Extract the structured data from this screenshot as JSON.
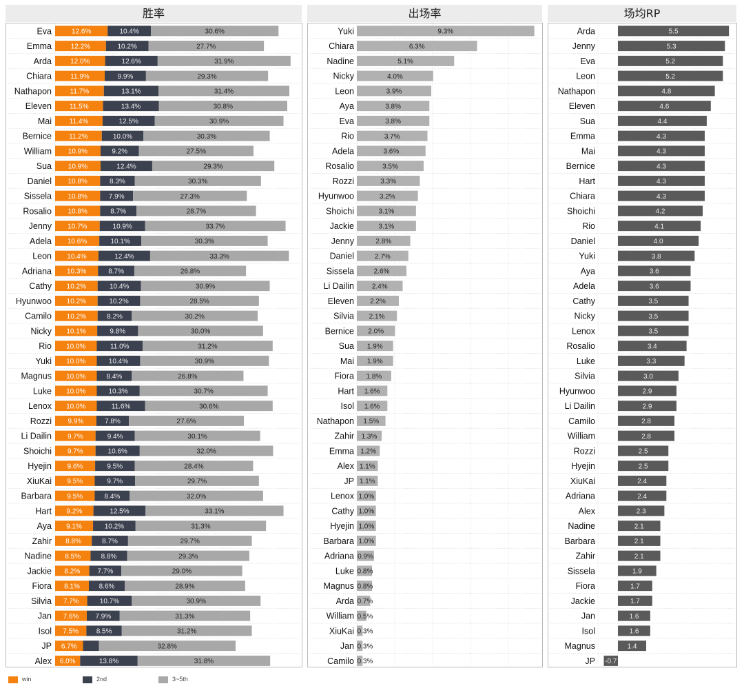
{
  "panels": {
    "win": "胜率",
    "pick": "出场率",
    "rp": "场均RP"
  },
  "legend": {
    "win": "win",
    "second": "2nd",
    "third": "3~5th"
  },
  "colors": {
    "win": "#f5820f",
    "second": "#3c4150",
    "third": "#a8a8a8",
    "pick": "#b1b1b1",
    "rp": "#5a5a5a"
  },
  "chart_data": [
    {
      "type": "bar",
      "stacked": true,
      "orientation": "horizontal",
      "title": "胜率",
      "categories": [
        "Eva",
        "Emma",
        "Arda",
        "Chiara",
        "Nathapon",
        "Eleven",
        "Mai",
        "Bernice",
        "William",
        "Sua",
        "Daniel",
        "Sissela",
        "Rosalio",
        "Jenny",
        "Adela",
        "Leon",
        "Adriana",
        "Cathy",
        "Hyunwoo",
        "Camilo",
        "Nicky",
        "Rio",
        "Yuki",
        "Magnus",
        "Luke",
        "Lenox",
        "Rozzi",
        "Li Dailin",
        "Shoichi",
        "Hyejin",
        "XiuKai",
        "Barbara",
        "Hart",
        "Aya",
        "Zahir",
        "Nadine",
        "Jackie",
        "Fiora",
        "Silvia",
        "Jan",
        "Isol",
        "JP",
        "Alex"
      ],
      "series": [
        {
          "name": "win",
          "values": [
            12.6,
            12.2,
            12.0,
            11.9,
            11.7,
            11.5,
            11.4,
            11.2,
            10.9,
            10.9,
            10.8,
            10.8,
            10.8,
            10.7,
            10.6,
            10.4,
            10.3,
            10.2,
            10.2,
            10.2,
            10.1,
            10.0,
            10.0,
            10.0,
            10.0,
            10.0,
            9.9,
            9.7,
            9.7,
            9.6,
            9.5,
            9.5,
            9.2,
            9.1,
            8.8,
            8.5,
            8.2,
            8.1,
            7.7,
            7.6,
            7.5,
            6.7,
            6.0
          ]
        },
        {
          "name": "2nd",
          "values": [
            10.4,
            10.2,
            12.6,
            9.9,
            13.1,
            13.4,
            12.5,
            10.0,
            9.2,
            12.4,
            8.3,
            7.9,
            8.7,
            10.9,
            10.1,
            12.4,
            8.7,
            10.4,
            10.2,
            8.2,
            9.8,
            11.0,
            10.4,
            8.4,
            10.3,
            11.6,
            7.8,
            9.4,
            10.6,
            9.5,
            9.7,
            8.4,
            12.5,
            10.2,
            8.7,
            8.8,
            7.7,
            8.6,
            10.7,
            7.9,
            8.5,
            3.8,
            13.8
          ]
        },
        {
          "name": "3~5th",
          "values": [
            30.6,
            27.7,
            31.9,
            29.3,
            31.4,
            30.8,
            30.9,
            30.3,
            27.5,
            29.3,
            30.3,
            27.3,
            28.7,
            33.7,
            30.3,
            33.3,
            26.8,
            30.9,
            28.5,
            30.2,
            30.0,
            31.2,
            30.9,
            26.8,
            30.7,
            30.6,
            27.6,
            30.1,
            32.0,
            28.4,
            29.7,
            32.0,
            33.1,
            31.3,
            29.7,
            29.3,
            29.0,
            28.9,
            30.9,
            31.3,
            31.2,
            32.8,
            31.8
          ]
        }
      ],
      "labels": [
        [
          "12.6%",
          "10.4%",
          "30.6%"
        ],
        [
          "12.2%",
          "10.2%",
          "27.7%"
        ],
        [
          "12.0%",
          "12.6%",
          "31.9%"
        ],
        [
          "11.9%",
          "9.9%",
          "29.3%"
        ],
        [
          "11.7%",
          "13.1%",
          "31.4%"
        ],
        [
          "11.5%",
          "13.4%",
          "30.8%"
        ],
        [
          "11.4%",
          "12.5%",
          "30.9%"
        ],
        [
          "11.2%",
          "10.0%",
          "30.3%"
        ],
        [
          "10.9%",
          "9.2%",
          "27.5%"
        ],
        [
          "10.9%",
          "12.4%",
          "29.3%"
        ],
        [
          "10.8%",
          "8.3%",
          "30.3%"
        ],
        [
          "10.8%",
          "7.9%",
          "27.3%"
        ],
        [
          "10.8%",
          "8.7%",
          "28.7%"
        ],
        [
          "10.7%",
          "10.9%",
          "33.7%"
        ],
        [
          "10.6%",
          "10.1%",
          "30.3%"
        ],
        [
          "10.4%",
          "12.4%",
          "33.3%"
        ],
        [
          "10.3%",
          "8.7%",
          "26.8%"
        ],
        [
          "10.2%",
          "10.4%",
          "30.9%"
        ],
        [
          "10.2%",
          "10.2%",
          "28.5%"
        ],
        [
          "10.2%",
          "8.2%",
          "30.2%"
        ],
        [
          "10.1%",
          "9.8%",
          "30.0%"
        ],
        [
          "10.0%",
          "11.0%",
          "31.2%"
        ],
        [
          "10.0%",
          "10.4%",
          "30.9%"
        ],
        [
          "10.0%",
          "8.4%",
          "26.8%"
        ],
        [
          "10.0%",
          "10.3%",
          "30.7%"
        ],
        [
          "10.0%",
          "11.6%",
          "30.6%"
        ],
        [
          "9.9%",
          "7.8%",
          "27.6%"
        ],
        [
          "9.7%",
          "9.4%",
          "30.1%"
        ],
        [
          "9.7%",
          "10.6%",
          "32.0%"
        ],
        [
          "9.6%",
          "9.5%",
          "28.4%"
        ],
        [
          "9.5%",
          "9.7%",
          "29.7%"
        ],
        [
          "9.5%",
          "8.4%",
          "32.0%"
        ],
        [
          "9.2%",
          "12.5%",
          "33.1%"
        ],
        [
          "9.1%",
          "10.2%",
          "31.3%"
        ],
        [
          "8.8%",
          "8.7%",
          "29.7%"
        ],
        [
          "8.5%",
          "8.8%",
          "29.3%"
        ],
        [
          "8.2%",
          "7.7%",
          "29.0%"
        ],
        [
          "8.1%",
          "8.6%",
          "28.9%"
        ],
        [
          "7.7%",
          "10.7%",
          "30.9%"
        ],
        [
          "7.6%",
          "7.9%",
          "31.3%"
        ],
        [
          "7.5%",
          "8.5%",
          "31.2%"
        ],
        [
          "6.7%",
          "",
          "32.8%"
        ],
        [
          "6.0%",
          "13.8%",
          "31.8%"
        ]
      ],
      "grid": true
    },
    {
      "type": "bar",
      "orientation": "horizontal",
      "title": "出场率",
      "categories": [
        "Yuki",
        "Chiara",
        "Nadine",
        "Nicky",
        "Leon",
        "Aya",
        "Eva",
        "Rio",
        "Adela",
        "Rosalio",
        "Rozzi",
        "Hyunwoo",
        "Shoichi",
        "Jackie",
        "Jenny",
        "Daniel",
        "Sissela",
        "Li Dailin",
        "Eleven",
        "Silvia",
        "Bernice",
        "Sua",
        "Mai",
        "Fiora",
        "Hart",
        "Isol",
        "Nathapon",
        "Zahir",
        "Emma",
        "Alex",
        "JP",
        "Lenox",
        "Cathy",
        "Hyejin",
        "Barbara",
        "Adriana",
        "Luke",
        "Magnus",
        "Arda",
        "William",
        "XiuKai",
        "Jan",
        "Camilo"
      ],
      "values": [
        9.3,
        6.3,
        5.1,
        4.0,
        3.9,
        3.8,
        3.8,
        3.7,
        3.6,
        3.5,
        3.3,
        3.2,
        3.1,
        3.1,
        2.8,
        2.7,
        2.6,
        2.4,
        2.2,
        2.1,
        2.0,
        1.9,
        1.9,
        1.8,
        1.6,
        1.6,
        1.5,
        1.3,
        1.2,
        1.1,
        1.1,
        1.0,
        1.0,
        1.0,
        1.0,
        0.9,
        0.8,
        0.8,
        0.7,
        0.5,
        0.3,
        0.3,
        0.3
      ],
      "labels": [
        "9.3%",
        "6.3%",
        "5.1%",
        "4.0%",
        "3.9%",
        "3.8%",
        "3.8%",
        "3.7%",
        "3.6%",
        "3.5%",
        "3.3%",
        "3.2%",
        "3.1%",
        "3.1%",
        "2.8%",
        "2.7%",
        "2.6%",
        "2.4%",
        "2.2%",
        "2.1%",
        "2.0%",
        "1.9%",
        "1.9%",
        "1.8%",
        "1.6%",
        "1.6%",
        "1.5%",
        "1.3%",
        "1.2%",
        "1.1%",
        "1.1%",
        "1.0%",
        "1.0%",
        "1.0%",
        "1.0%",
        "0.9%",
        "0.8%",
        "0.8%",
        "0.7%",
        "0.5%",
        "0.3%",
        "0.3%",
        "0.3%"
      ],
      "grid": true
    },
    {
      "type": "bar",
      "orientation": "horizontal",
      "title": "场均RP",
      "categories": [
        "Arda",
        "Jenny",
        "Eva",
        "Leon",
        "Nathapon",
        "Eleven",
        "Sua",
        "Emma",
        "Mai",
        "Bernice",
        "Hart",
        "Chiara",
        "Shoichi",
        "Rio",
        "Daniel",
        "Yuki",
        "Aya",
        "Adela",
        "Cathy",
        "Nicky",
        "Lenox",
        "Rosalio",
        "Luke",
        "Silvia",
        "Hyunwoo",
        "Li Dailin",
        "Camilo",
        "William",
        "Rozzi",
        "Hyejin",
        "XiuKai",
        "Adriana",
        "Alex",
        "Nadine",
        "Barbara",
        "Zahir",
        "Sissela",
        "Fiora",
        "Jackie",
        "Jan",
        "Isol",
        "Magnus",
        "JP"
      ],
      "values": [
        5.5,
        5.3,
        5.2,
        5.2,
        4.8,
        4.6,
        4.4,
        4.3,
        4.3,
        4.3,
        4.3,
        4.3,
        4.2,
        4.1,
        4.0,
        3.8,
        3.6,
        3.6,
        3.5,
        3.5,
        3.5,
        3.4,
        3.3,
        3.0,
        2.9,
        2.9,
        2.8,
        2.8,
        2.5,
        2.5,
        2.4,
        2.4,
        2.3,
        2.1,
        2.1,
        2.1,
        1.9,
        1.7,
        1.7,
        1.6,
        1.6,
        1.4,
        -0.7
      ],
      "labels": [
        "5.5",
        "5.3",
        "5.2",
        "5.2",
        "4.8",
        "4.6",
        "4.4",
        "4.3",
        "4.3",
        "4.3",
        "4.3",
        "4.3",
        "4.2",
        "4.1",
        "4.0",
        "3.8",
        "3.6",
        "3.6",
        "3.5",
        "3.5",
        "3.5",
        "3.4",
        "3.3",
        "3.0",
        "2.9",
        "2.9",
        "2.8",
        "2.8",
        "2.5",
        "2.5",
        "2.4",
        "2.4",
        "2.3",
        "2.1",
        "2.1",
        "2.1",
        "1.9",
        "1.7",
        "1.7",
        "1.6",
        "1.6",
        "1.4",
        "-0.7"
      ],
      "grid": true
    }
  ]
}
